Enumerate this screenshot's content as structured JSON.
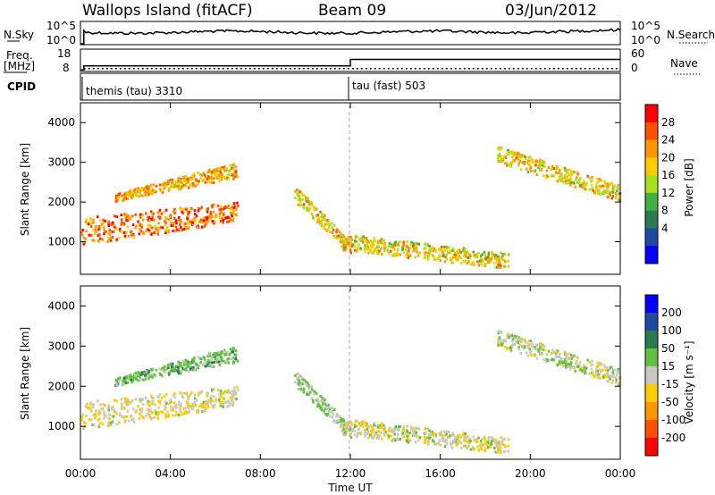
{
  "header": {
    "site": "Wallops Island (fitACF)",
    "beam": "Beam 09",
    "date": "03/Jun/2012"
  },
  "nsky_panel": {
    "left_label": "N.Sky",
    "left_ticks": [
      "10^5",
      "10^0"
    ],
    "right_ticks": [
      "10^5",
      "10^0"
    ],
    "right_label": "N.Search"
  },
  "freq_panel": {
    "left_label_1": "Freq.",
    "left_label_2": "[MHz]",
    "left_ticks": [
      "18",
      "8"
    ],
    "right_ticks": [
      "60",
      "0"
    ],
    "right_label": "Nave",
    "freq_steps": [
      {
        "t": 0.0,
        "mhz": 9.0
      },
      {
        "t": 0.15,
        "mhz": 11.5
      },
      {
        "t": 12.0,
        "mhz": 15.5
      },
      {
        "t": 24.0,
        "mhz": 15.5
      }
    ],
    "nave_level": 11
  },
  "cpid_panel": {
    "label": "CPID",
    "modes": [
      {
        "start_hour": 0.15,
        "text": "themis (tau) 3310"
      },
      {
        "start_hour": 12.0,
        "text": "tau (fast) 503"
      }
    ]
  },
  "power_panel": {
    "ylabel": "Slant Range [km]",
    "yticks": [
      "4000",
      "3000",
      "2000",
      "1000"
    ],
    "cbar_label": "Power [dB]",
    "cbar_ticks": [
      "28",
      "24",
      "20",
      "16",
      "12",
      "8",
      "4"
    ],
    "cbar_colors": [
      "#ff0000",
      "#ff5000",
      "#ff9600",
      "#ffcc00",
      "#a8e020",
      "#40b040",
      "#2c7a50",
      "#1f4aa0",
      "#0000ff"
    ]
  },
  "velocity_panel": {
    "ylabel": "Slant Range [km]",
    "yticks": [
      "4000",
      "3000",
      "2000",
      "1000"
    ],
    "cbar_label": "Velocity [m s⁻¹]",
    "cbar_ticks": [
      "200",
      "100",
      "50",
      "15",
      "-15",
      "-50",
      "-100",
      "-200"
    ],
    "cbar_colors": [
      "#0000ff",
      "#1f4aa0",
      "#2c7a50",
      "#60c040",
      "#c8c8c0",
      "#ffcc00",
      "#ff9600",
      "#ff5000",
      "#ff0000"
    ]
  },
  "xaxis": {
    "label": "Time UT",
    "ticks": [
      "00:00",
      "04:00",
      "08:00",
      "12:00",
      "16:00",
      "20:00",
      "00:00"
    ]
  },
  "chart_data": {
    "type": "heatmap",
    "x_range_hours": [
      0,
      24
    ],
    "range_km": [
      180,
      4500
    ],
    "scatter_features": [
      {
        "name": "morning lower band",
        "t": [
          0.0,
          7.0
        ],
        "km_start": [
          900,
          1600
        ],
        "km_end": [
          1500,
          2000
        ],
        "power_db": 26,
        "velocity": -10
      },
      {
        "name": "morning upper band",
        "t": [
          1.5,
          7.0
        ],
        "km_start": [
          2000,
          2200
        ],
        "km_end": [
          2600,
          3000
        ],
        "power_db": 22,
        "velocity": 30
      },
      {
        "name": "descending trace",
        "t": [
          9.5,
          12.0
        ],
        "km_start": [
          2000,
          2400
        ],
        "km_end": [
          700,
          1000
        ],
        "power_db": 20,
        "velocity": 20
      },
      {
        "name": "afternoon low band",
        "t": [
          11.5,
          19.0
        ],
        "km_start": [
          800,
          1200
        ],
        "km_end": [
          300,
          700
        ],
        "power_db": 20,
        "velocity": -5
      },
      {
        "name": "evening upper band",
        "t": [
          18.5,
          24.0
        ],
        "km_start": [
          3000,
          3400
        ],
        "km_end": [
          2000,
          2400
        ],
        "power_db": 20,
        "velocity": 5
      }
    ]
  }
}
